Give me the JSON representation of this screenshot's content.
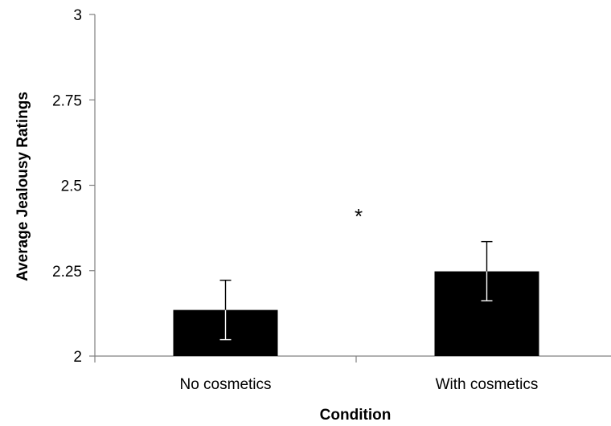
{
  "chart_data": {
    "type": "bar",
    "title": "",
    "xlabel": "Condition",
    "ylabel": "Average Jealousy Ratings",
    "categories": [
      "No cosmetics",
      "With cosmetics"
    ],
    "values": [
      2.135,
      2.248
    ],
    "error_bars": [
      {
        "low": 2.048,
        "high": 2.222
      },
      {
        "low": 2.162,
        "high": 2.335
      }
    ],
    "ylim": [
      2,
      3
    ],
    "yticks": [
      2,
      2.25,
      2.5,
      2.75,
      3
    ],
    "ytick_labels": [
      "2",
      "2.25",
      "2.5",
      "2.75",
      "3"
    ],
    "annotations": [
      "*"
    ],
    "grid": false,
    "legend": "none",
    "bar_color": "#000000"
  }
}
